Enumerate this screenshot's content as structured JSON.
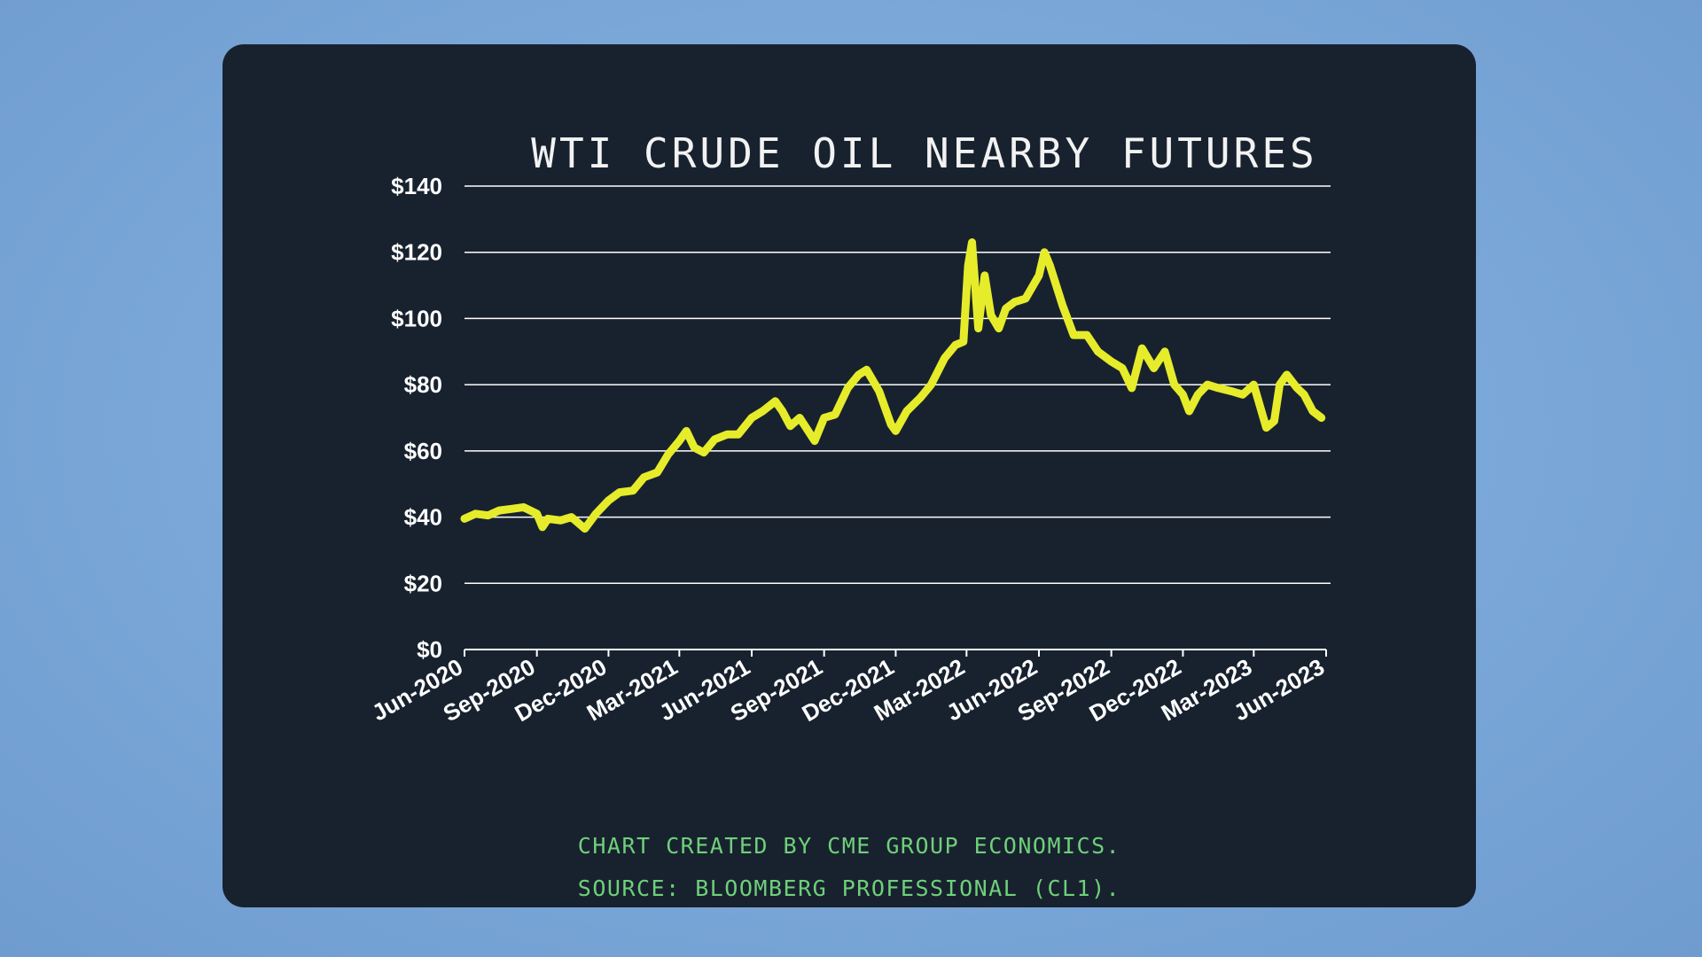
{
  "colors": {
    "background": "#7aa7d8",
    "card": "#18222f",
    "line": "#e6ec2a",
    "grid": "#ffffff",
    "footer": "#6fd07a"
  },
  "footer": {
    "credit": "CHART CREATED BY CME GROUP ECONOMICS.",
    "source": "SOURCE:  BLOOMBERG PROFESSIONAL (CL1)."
  },
  "chart_data": {
    "type": "line",
    "title": "WTI CRUDE OIL NEARBY FUTURES",
    "xlabel": "",
    "ylabel": "",
    "ylim": [
      0,
      140
    ],
    "y_ticks": [
      0,
      20,
      40,
      60,
      80,
      100,
      120,
      140
    ],
    "y_tick_labels": [
      "$0",
      "$20",
      "$40",
      "$60",
      "$80",
      "$100",
      "$120",
      "$140"
    ],
    "x_ticks": [
      "2020-06-01",
      "2020-09-01",
      "2020-12-01",
      "2021-03-01",
      "2021-06-01",
      "2021-09-01",
      "2021-12-01",
      "2022-03-01",
      "2022-06-01",
      "2022-09-01",
      "2022-12-01",
      "2023-03-01",
      "2023-06-01"
    ],
    "x_tick_labels": [
      "Jun-2020",
      "Sep-2020",
      "Dec-2020",
      "Mar-2021",
      "Jun-2021",
      "Sep-2021",
      "Dec-2021",
      "Mar-2022",
      "Jun-2022",
      "Sep-2022",
      "Dec-2022",
      "Mar-2023",
      "Jun-2023"
    ],
    "grid": "horizontal",
    "legend": "none",
    "series": [
      {
        "name": "",
        "x": [
          "2020-06-01",
          "2020-06-15",
          "2020-07-01",
          "2020-07-15",
          "2020-08-01",
          "2020-08-15",
          "2020-09-01",
          "2020-09-08",
          "2020-09-15",
          "2020-10-01",
          "2020-10-15",
          "2020-11-01",
          "2020-11-15",
          "2020-12-01",
          "2020-12-15",
          "2021-01-01",
          "2021-01-15",
          "2021-02-01",
          "2021-02-15",
          "2021-03-01",
          "2021-03-10",
          "2021-03-20",
          "2021-04-01",
          "2021-04-15",
          "2021-05-01",
          "2021-05-15",
          "2021-06-01",
          "2021-06-15",
          "2021-07-01",
          "2021-07-10",
          "2021-07-20",
          "2021-08-01",
          "2021-08-20",
          "2021-09-01",
          "2021-09-15",
          "2021-10-01",
          "2021-10-15",
          "2021-10-25",
          "2021-11-10",
          "2021-11-25",
          "2021-12-01",
          "2021-12-15",
          "2022-01-01",
          "2022-01-15",
          "2022-02-01",
          "2022-02-15",
          "2022-02-25",
          "2022-03-03",
          "2022-03-08",
          "2022-03-16",
          "2022-03-24",
          "2022-04-01",
          "2022-04-11",
          "2022-04-20",
          "2022-05-01",
          "2022-05-15",
          "2022-06-01",
          "2022-06-08",
          "2022-06-15",
          "2022-07-01",
          "2022-07-15",
          "2022-08-01",
          "2022-08-15",
          "2022-09-01",
          "2022-09-15",
          "2022-09-27",
          "2022-10-10",
          "2022-10-25",
          "2022-11-08",
          "2022-11-20",
          "2022-12-01",
          "2022-12-09",
          "2022-12-20",
          "2023-01-01",
          "2023-01-15",
          "2023-02-01",
          "2023-02-15",
          "2023-03-01",
          "2023-03-17",
          "2023-03-27",
          "2023-04-03",
          "2023-04-12",
          "2023-04-25",
          "2023-05-04",
          "2023-05-15",
          "2023-05-26"
        ],
        "y": [
          39.5,
          41,
          40.5,
          42,
          42.5,
          43,
          41,
          37,
          39.5,
          39,
          40,
          36.5,
          41,
          45,
          47.5,
          48,
          52,
          53.5,
          59,
          63,
          66,
          61,
          59.5,
          63.5,
          65,
          65,
          70,
          72,
          75,
          72,
          67.5,
          70,
          63,
          70,
          71,
          79,
          83,
          84.5,
          78,
          68,
          66,
          72,
          76,
          80,
          88,
          92,
          93,
          116,
          123,
          97,
          113,
          101,
          97,
          103,
          105,
          106,
          113,
          120,
          116,
          104,
          95,
          95,
          90,
          87,
          85,
          79,
          91,
          85,
          90,
          80,
          77,
          72,
          77,
          80,
          79,
          78,
          77,
          80,
          67,
          69,
          80,
          83,
          79,
          77,
          72,
          70
        ]
      }
    ]
  }
}
